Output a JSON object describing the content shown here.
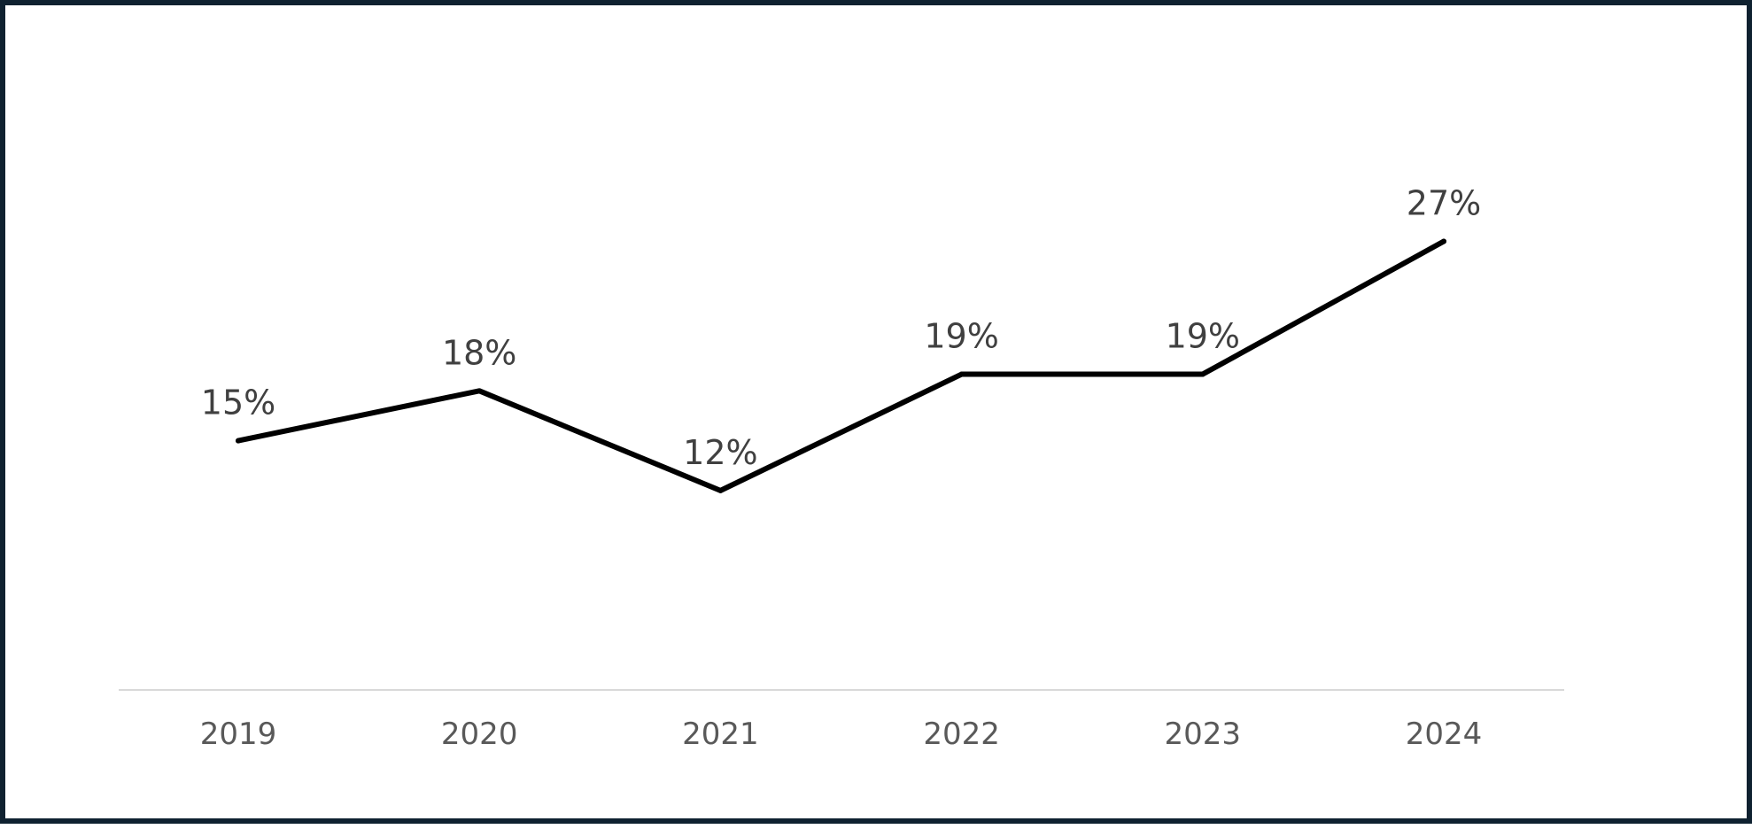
{
  "chart_data": {
    "type": "line",
    "categories": [
      "2019",
      "2020",
      "2021",
      "2022",
      "2023",
      "2024"
    ],
    "series": [
      {
        "values": [
          15,
          18,
          12,
          19,
          19,
          27
        ]
      }
    ],
    "data_labels": [
      "15%",
      "18%",
      "12%",
      "19%",
      "19%",
      "27%"
    ],
    "ylim": [
      0,
      37
    ],
    "grid": false,
    "legend": "none",
    "colors": {
      "line": "#000000",
      "axis": "#d9d9d9",
      "frame": "#0f2130"
    }
  }
}
